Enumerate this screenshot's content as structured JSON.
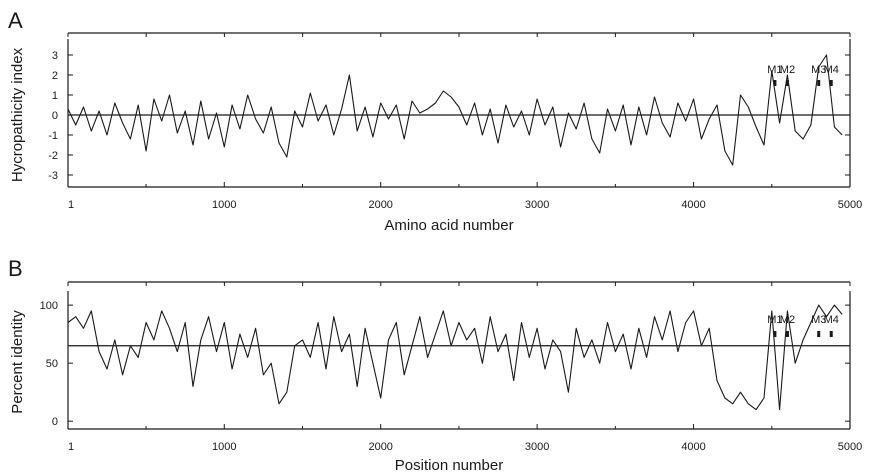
{
  "chart_data": [
    {
      "panel": "A",
      "type": "line",
      "xlabel": "Amino acid number",
      "ylabel": "Hycropathicity index",
      "xlim": [
        1,
        5000
      ],
      "ylim": [
        -3.5,
        3.5
      ],
      "x_ticks": [
        "1",
        "1000",
        "2000",
        "3000",
        "4000",
        "5000"
      ],
      "y_ticks": [
        "3",
        "2",
        "1",
        "0",
        "-1",
        "-2",
        "-3"
      ],
      "reference_line": 0,
      "segments": [
        {
          "label": "M1",
          "x": 4520
        },
        {
          "label": "M2",
          "x": 4600
        },
        {
          "label": "M3",
          "x": 4800
        },
        {
          "label": "M4",
          "x": 4880
        }
      ],
      "series": [
        {
          "x": [
            1,
            50,
            100,
            150,
            200,
            250,
            300,
            350,
            400,
            450,
            500,
            550,
            600,
            650,
            700,
            750,
            800,
            850,
            900,
            950,
            1000,
            1050,
            1100,
            1150,
            1200,
            1250,
            1300,
            1350,
            1400,
            1450,
            1500,
            1550,
            1600,
            1650,
            1700,
            1750,
            1800,
            1850,
            1900,
            1950,
            2000,
            2050,
            2100,
            2150,
            2200,
            2250,
            2300,
            2350,
            2400,
            2450,
            2500,
            2550,
            2600,
            2650,
            2700,
            2750,
            2800,
            2850,
            2900,
            2950,
            3000,
            3050,
            3100,
            3150,
            3200,
            3250,
            3300,
            3350,
            3400,
            3450,
            3500,
            3550,
            3600,
            3650,
            3700,
            3750,
            3800,
            3850,
            3900,
            3950,
            4000,
            4050,
            4100,
            4150,
            4200,
            4250,
            4300,
            4350,
            4400,
            4450,
            4500,
            4550,
            4600,
            4650,
            4700,
            4750,
            4800,
            4850,
            4900,
            4950
          ],
          "values": [
            0.3,
            -0.5,
            0.4,
            -0.8,
            0.2,
            -1.0,
            0.6,
            -0.4,
            -1.2,
            0.5,
            -1.8,
            0.8,
            -0.3,
            1.0,
            -0.9,
            0.2,
            -1.5,
            0.7,
            -1.2,
            0.1,
            -1.6,
            0.5,
            -0.7,
            1.0,
            -0.2,
            -0.9,
            0.4,
            -1.4,
            -2.1,
            0.2,
            -0.6,
            1.1,
            -0.3,
            0.5,
            -1.0,
            0.3,
            2.0,
            -0.8,
            0.4,
            -1.1,
            0.6,
            -0.2,
            0.5,
            -1.2,
            0.7,
            0.1,
            0.3,
            0.6,
            1.2,
            0.9,
            0.4,
            -0.5,
            0.6,
            -1.0,
            0.3,
            -1.4,
            0.5,
            -0.6,
            0.2,
            -1.0,
            0.8,
            -0.5,
            0.4,
            -1.6,
            0.1,
            -0.7,
            0.6,
            -1.2,
            -1.9,
            0.3,
            -0.8,
            0.5,
            -1.5,
            0.4,
            -1.0,
            0.9,
            -0.4,
            -1.1,
            0.6,
            -0.3,
            0.8,
            -1.2,
            -0.2,
            0.5,
            -1.8,
            -2.5,
            1.0,
            0.4,
            -0.6,
            -1.5,
            2.2,
            -0.4,
            2.0,
            -0.8,
            -1.2,
            -0.5,
            2.4,
            3.0,
            -0.6,
            -1.0
          ]
        }
      ]
    },
    {
      "panel": "B",
      "type": "line",
      "xlabel": "Position number",
      "ylabel": "Percent identity",
      "xlim": [
        1,
        5000
      ],
      "ylim": [
        -5,
        107
      ],
      "x_ticks": [
        "1",
        "1000",
        "2000",
        "3000",
        "4000",
        "5000"
      ],
      "y_ticks": [
        "100",
        "50",
        "0"
      ],
      "reference_line": 65,
      "segments": [
        {
          "label": "M1",
          "x": 4520
        },
        {
          "label": "M2",
          "x": 4600
        },
        {
          "label": "M3",
          "x": 4800
        },
        {
          "label": "M4",
          "x": 4880
        }
      ],
      "series": [
        {
          "x": [
            1,
            50,
            100,
            150,
            200,
            250,
            300,
            350,
            400,
            450,
            500,
            550,
            600,
            650,
            700,
            750,
            800,
            850,
            900,
            950,
            1000,
            1050,
            1100,
            1150,
            1200,
            1250,
            1300,
            1350,
            1400,
            1450,
            1500,
            1550,
            1600,
            1650,
            1700,
            1750,
            1800,
            1850,
            1900,
            1950,
            2000,
            2050,
            2100,
            2150,
            2200,
            2250,
            2300,
            2350,
            2400,
            2450,
            2500,
            2550,
            2600,
            2650,
            2700,
            2750,
            2800,
            2850,
            2900,
            2950,
            3000,
            3050,
            3100,
            3150,
            3200,
            3250,
            3300,
            3350,
            3400,
            3450,
            3500,
            3550,
            3600,
            3650,
            3700,
            3750,
            3800,
            3850,
            3900,
            3950,
            4000,
            4050,
            4100,
            4150,
            4200,
            4250,
            4300,
            4350,
            4400,
            4450,
            4500,
            4550,
            4600,
            4650,
            4700,
            4750,
            4800,
            4850,
            4900,
            4950
          ],
          "values": [
            85,
            90,
            80,
            95,
            60,
            45,
            70,
            40,
            65,
            55,
            85,
            70,
            95,
            80,
            60,
            85,
            30,
            70,
            90,
            60,
            85,
            45,
            75,
            55,
            80,
            40,
            50,
            15,
            25,
            65,
            70,
            55,
            85,
            45,
            90,
            60,
            75,
            30,
            80,
            50,
            20,
            70,
            85,
            40,
            65,
            90,
            55,
            75,
            95,
            65,
            85,
            70,
            80,
            50,
            90,
            60,
            75,
            35,
            85,
            55,
            80,
            45,
            70,
            60,
            25,
            80,
            55,
            70,
            50,
            85,
            60,
            75,
            45,
            80,
            55,
            90,
            70,
            95,
            60,
            85,
            95,
            65,
            80,
            35,
            20,
            15,
            25,
            15,
            10,
            20,
            95,
            10,
            95,
            50,
            70,
            85,
            100,
            90,
            100,
            92
          ]
        }
      ]
    }
  ]
}
